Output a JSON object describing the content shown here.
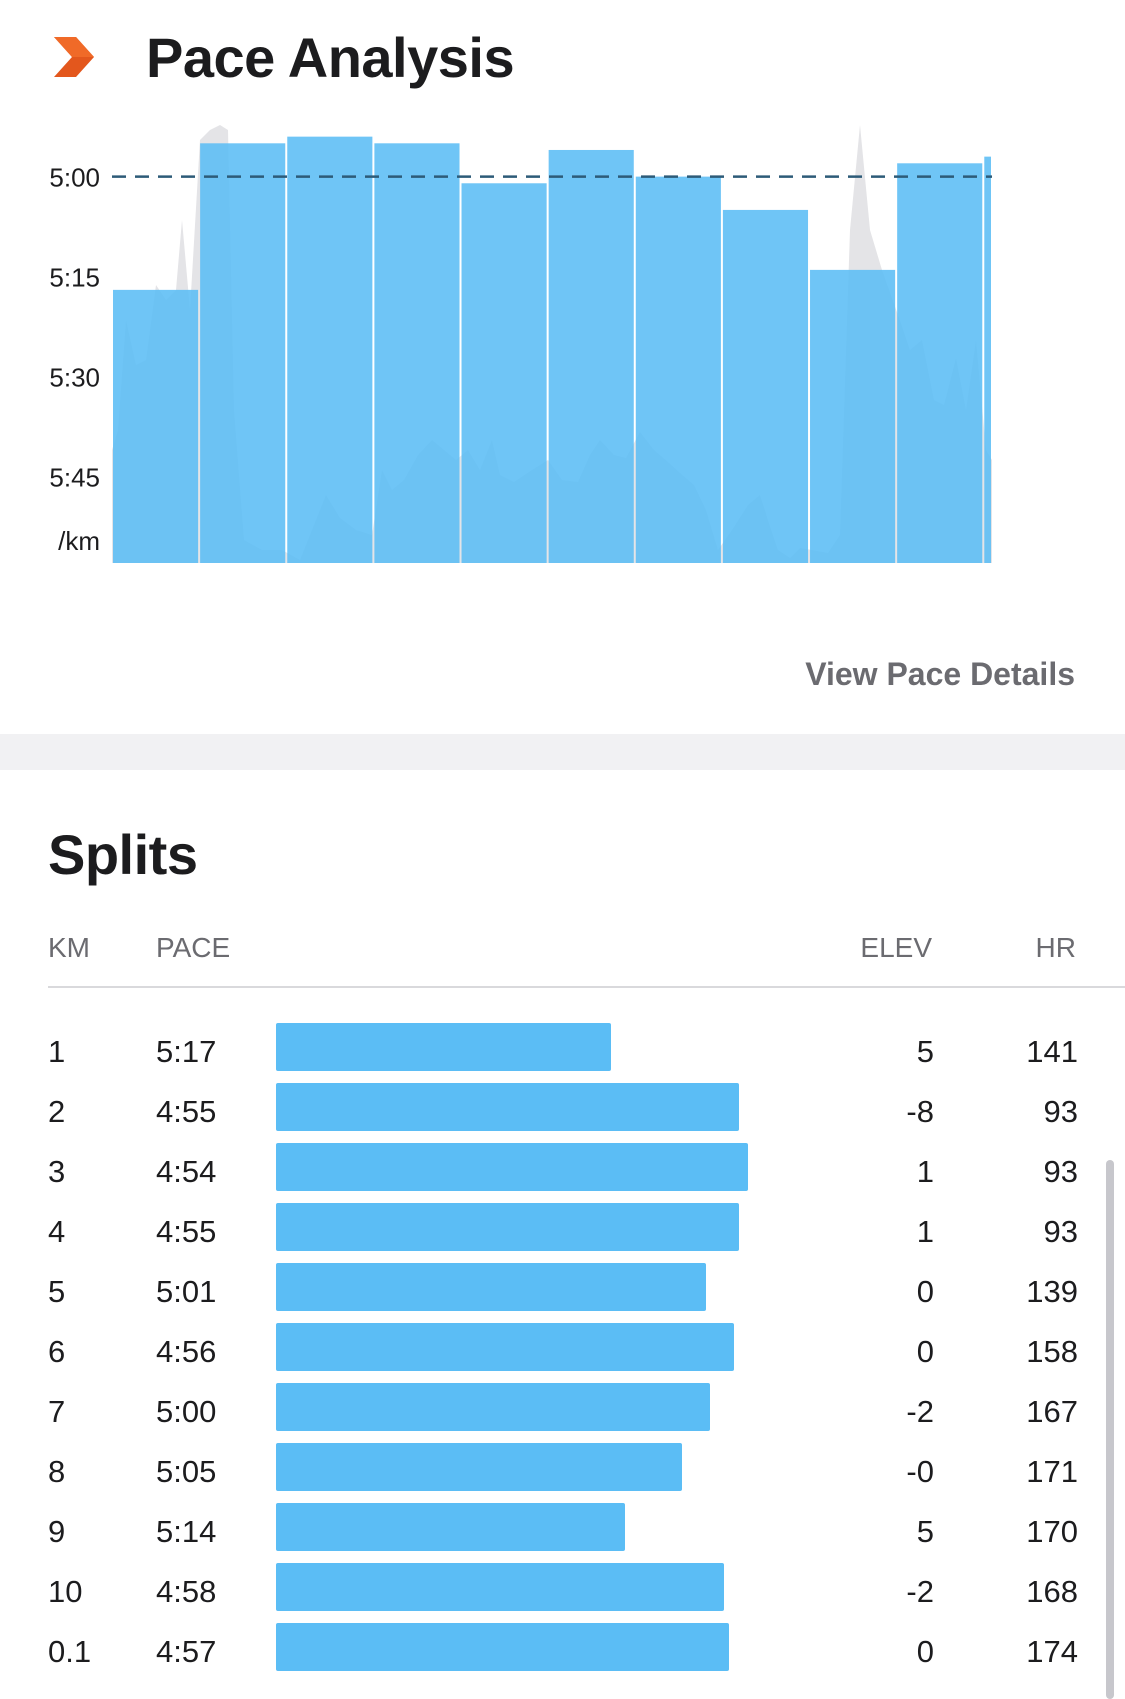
{
  "pace_analysis": {
    "title": "Pace Analysis",
    "view_details_label": "View Pace Details"
  },
  "chart_data": {
    "type": "bar",
    "y_axis_unit": "/km",
    "y_ticks": [
      "5:00",
      "5:15",
      "5:30",
      "5:45"
    ],
    "y_tick_seconds": [
      300,
      315,
      330,
      345
    ],
    "ylim_seconds": [
      358,
      290
    ],
    "reference_line_seconds": 300,
    "categories": [
      "1",
      "2",
      "3",
      "4",
      "5",
      "6",
      "7",
      "8",
      "9",
      "10",
      "0.1"
    ],
    "bar_widths_km": [
      1,
      1,
      1,
      1,
      1,
      1,
      1,
      1,
      1,
      1,
      0.1
    ],
    "values_seconds": [
      317,
      295,
      294,
      295,
      301,
      296,
      300,
      305,
      314,
      298,
      297
    ],
    "bar_color": "#5bbdf5",
    "background_series_color": "#e4e4e7",
    "grid": false
  },
  "splits": {
    "title": "Splits",
    "headers": {
      "km": "KM",
      "pace": "PACE",
      "elev": "ELEV",
      "hr": "HR"
    },
    "bar_color": "#5bbdf5",
    "rows": [
      {
        "km": "1",
        "pace": "5:17",
        "elev": "5",
        "hr": "141",
        "bar_fraction": 0.71
      },
      {
        "km": "2",
        "pace": "4:55",
        "elev": "-8",
        "hr": "93",
        "bar_fraction": 0.98
      },
      {
        "km": "3",
        "pace": "4:54",
        "elev": "1",
        "hr": "93",
        "bar_fraction": 1.0
      },
      {
        "km": "4",
        "pace": "4:55",
        "elev": "1",
        "hr": "93",
        "bar_fraction": 0.98
      },
      {
        "km": "5",
        "pace": "5:01",
        "elev": "0",
        "hr": "139",
        "bar_fraction": 0.91
      },
      {
        "km": "6",
        "pace": "4:56",
        "elev": "0",
        "hr": "158",
        "bar_fraction": 0.97
      },
      {
        "km": "7",
        "pace": "5:00",
        "elev": "-2",
        "hr": "167",
        "bar_fraction": 0.92
      },
      {
        "km": "8",
        "pace": "5:05",
        "elev": "-0",
        "hr": "171",
        "bar_fraction": 0.86
      },
      {
        "km": "9",
        "pace": "5:14",
        "elev": "5",
        "hr": "170",
        "bar_fraction": 0.74
      },
      {
        "km": "10",
        "pace": "4:58",
        "elev": "-2",
        "hr": "168",
        "bar_fraction": 0.95
      },
      {
        "km": "0.1",
        "pace": "4:57",
        "elev": "0",
        "hr": "174",
        "bar_fraction": 0.96
      }
    ]
  }
}
